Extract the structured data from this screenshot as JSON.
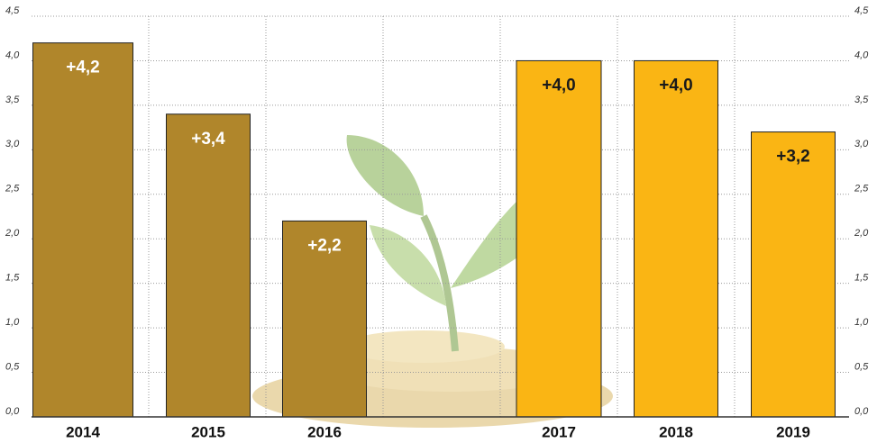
{
  "chart_data": {
    "type": "bar",
    "categories": [
      "2014",
      "2015",
      "2016",
      "2017",
      "2018",
      "2019"
    ],
    "values": [
      4.2,
      3.4,
      2.2,
      4.0,
      4.0,
      3.2
    ],
    "value_labels": [
      "+4,2",
      "+3,4",
      "+2,2",
      "+4,0",
      "+4,0",
      "+3,2"
    ],
    "colors": [
      "#b0862b",
      "#b0862b",
      "#b0862b",
      "#fab514",
      "#fab514",
      "#fab514"
    ],
    "value_label_colors": [
      "#ffffff",
      "#ffffff",
      "#ffffff",
      "#1a1a1a",
      "#1a1a1a",
      "#1a1a1a"
    ],
    "ylim": [
      0,
      4.5
    ],
    "yticks": [
      {
        "value": 0,
        "label": "0,0"
      },
      {
        "value": 0.5,
        "label": "0,5"
      },
      {
        "value": 1,
        "label": "1,0"
      },
      {
        "value": 1.5,
        "label": "1,5"
      },
      {
        "value": 2,
        "label": "2,0"
      },
      {
        "value": 2.5,
        "label": "2,5"
      },
      {
        "value": 3,
        "label": "3,0"
      },
      {
        "value": 3.5,
        "label": "3,5"
      },
      {
        "value": 4,
        "label": "4,0"
      },
      {
        "value": 4.5,
        "label": "4,5"
      }
    ],
    "grid": true
  }
}
